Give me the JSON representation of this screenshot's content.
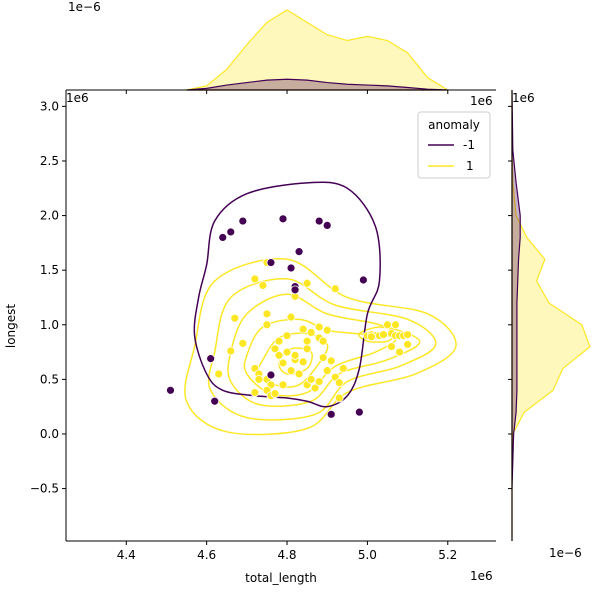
{
  "chart_data": {
    "type": "scatter",
    "subtype": "jointplot-kde",
    "xlabel": "total_length",
    "ylabel": "longest",
    "xlim": [
      4.25,
      5.32
    ],
    "ylim": [
      -0.98,
      3.15
    ],
    "x_ticks": [
      4.4,
      4.6,
      4.8,
      5.0,
      5.2
    ],
    "x_tick_labels": [
      "4.4",
      "4.6",
      "4.8",
      "5.0",
      "5.2"
    ],
    "y_ticks": [
      -0.5,
      0.0,
      0.5,
      1.0,
      1.5,
      2.0,
      2.5,
      3.0
    ],
    "y_tick_labels": [
      "−0.5",
      "0.0",
      "0.5",
      "1.0",
      "1.5",
      "2.0",
      "2.5",
      "3.0"
    ],
    "x_offset_text": "1e6",
    "y_offset_text": "1e6",
    "top_marginal_offset": "1e−6",
    "top_marginal_offset_right": "1e6",
    "right_marginal_offset": "1e6",
    "right_marginal_offset_bottom": "1e−6",
    "legend": {
      "title": "anomaly",
      "placement": "top-right",
      "entries": [
        {
          "label": "-1",
          "color": "#440154"
        },
        {
          "label": "1",
          "color": "#fde725"
        }
      ]
    },
    "series": [
      {
        "name": "-1",
        "color": "#440154",
        "points": [
          [
            4.51,
            0.4
          ],
          [
            4.62,
            0.3
          ],
          [
            4.61,
            0.69
          ],
          [
            4.64,
            1.8
          ],
          [
            4.66,
            1.85
          ],
          [
            4.69,
            1.95
          ],
          [
            4.79,
            1.97
          ],
          [
            4.76,
            1.57
          ],
          [
            4.76,
            0.54
          ],
          [
            4.81,
            1.52
          ],
          [
            4.82,
            1.35
          ],
          [
            4.82,
            1.32
          ],
          [
            4.83,
            1.67
          ],
          [
            4.88,
            1.95
          ],
          [
            4.9,
            1.91
          ],
          [
            4.91,
            0.18
          ],
          [
            4.98,
            0.2
          ],
          [
            4.99,
            1.41
          ]
        ]
      },
      {
        "name": "1",
        "color": "#fde725",
        "points": [
          [
            4.75,
            1.57
          ],
          [
            4.72,
            1.42
          ],
          [
            4.74,
            1.36
          ],
          [
            4.82,
            1.26
          ],
          [
            4.85,
            1.38
          ],
          [
            4.92,
            1.33
          ],
          [
            4.67,
            1.06
          ],
          [
            4.75,
            1.1
          ],
          [
            4.75,
            1.0
          ],
          [
            4.81,
            1.07
          ],
          [
            4.8,
            0.9
          ],
          [
            4.84,
            0.96
          ],
          [
            4.86,
            0.93
          ],
          [
            4.88,
            0.98
          ],
          [
            4.9,
            0.95
          ],
          [
            4.85,
            0.85
          ],
          [
            4.88,
            0.88
          ],
          [
            4.89,
            0.85
          ],
          [
            4.66,
            0.76
          ],
          [
            4.69,
            0.83
          ],
          [
            4.72,
            0.6
          ],
          [
            4.73,
            0.55
          ],
          [
            4.75,
            0.5
          ],
          [
            4.76,
            0.45
          ],
          [
            4.77,
            0.78
          ],
          [
            4.78,
            0.72
          ],
          [
            4.79,
            0.65
          ],
          [
            4.8,
            0.75
          ],
          [
            4.81,
            0.58
          ],
          [
            4.82,
            0.68
          ],
          [
            4.83,
            0.55
          ],
          [
            4.84,
            0.66
          ],
          [
            4.85,
            0.45
          ],
          [
            4.86,
            0.5
          ],
          [
            4.87,
            0.42
          ],
          [
            4.88,
            0.48
          ],
          [
            4.89,
            0.7
          ],
          [
            4.9,
            0.58
          ],
          [
            4.91,
            0.67
          ],
          [
            4.92,
            0.52
          ],
          [
            4.93,
            0.47
          ],
          [
            4.94,
            0.6
          ],
          [
            4.93,
            0.33
          ],
          [
            4.72,
            0.38
          ],
          [
            4.73,
            0.5
          ],
          [
            4.75,
            0.4
          ],
          [
            4.76,
            0.35
          ],
          [
            4.77,
            0.37
          ],
          [
            4.79,
            0.45
          ],
          [
            4.78,
            0.85
          ],
          [
            4.82,
            0.72
          ],
          [
            4.85,
            0.78
          ],
          [
            4.63,
            0.55
          ],
          [
            5.0,
            0.9
          ],
          [
            5.01,
            0.91
          ],
          [
            5.02,
            0.9
          ],
          [
            5.03,
            0.9
          ],
          [
            5.04,
            0.91
          ],
          [
            5.06,
            0.92
          ],
          [
            5.07,
            0.9
          ],
          [
            5.08,
            0.9
          ],
          [
            5.09,
            0.9
          ],
          [
            5.1,
            0.91
          ],
          [
            5.06,
            0.8
          ],
          [
            5.08,
            0.75
          ],
          [
            5.1,
            0.82
          ],
          [
            5.05,
            1.0
          ],
          [
            5.07,
            1.0
          ],
          [
            5.01,
            0.89
          ]
        ]
      }
    ],
    "kde_contours": [
      {
        "series": "-1",
        "level": 1,
        "path": [
          [
            4.6,
            1.55
          ],
          [
            4.62,
            1.95
          ],
          [
            4.7,
            2.2
          ],
          [
            4.85,
            2.3
          ],
          [
            4.95,
            2.25
          ],
          [
            5.02,
            1.9
          ],
          [
            5.03,
            1.4
          ],
          [
            5.0,
            1.1
          ],
          [
            4.98,
            0.6
          ],
          [
            4.95,
            0.35
          ],
          [
            4.9,
            0.25
          ],
          [
            4.85,
            0.3
          ],
          [
            4.8,
            0.33
          ],
          [
            4.72,
            0.35
          ],
          [
            4.64,
            0.4
          ],
          [
            4.6,
            0.55
          ],
          [
            4.57,
            0.9
          ],
          [
            4.58,
            1.25
          ]
        ]
      }
    ],
    "kde_contours_series1": [
      [
        [
          4.57,
          0.8
        ],
        [
          4.62,
          1.4
        ],
        [
          4.8,
          1.6
        ],
        [
          4.95,
          1.25
        ],
        [
          5.15,
          1.1
        ],
        [
          5.22,
          0.8
        ],
        [
          5.12,
          0.55
        ],
        [
          4.95,
          0.38
        ],
        [
          4.85,
          0.05
        ],
        [
          4.65,
          0.02
        ],
        [
          4.55,
          0.3
        ]
      ],
      [
        [
          4.62,
          0.75
        ],
        [
          4.66,
          1.25
        ],
        [
          4.8,
          1.42
        ],
        [
          4.92,
          1.18
        ],
        [
          5.1,
          1.05
        ],
        [
          5.17,
          0.82
        ],
        [
          5.08,
          0.62
        ],
        [
          4.95,
          0.48
        ],
        [
          4.87,
          0.18
        ],
        [
          4.7,
          0.15
        ],
        [
          4.61,
          0.4
        ]
      ],
      [
        [
          4.66,
          0.75
        ],
        [
          4.7,
          1.1
        ],
        [
          4.8,
          1.28
        ],
        [
          4.9,
          1.1
        ],
        [
          5.03,
          1.0
        ],
        [
          5.13,
          0.85
        ],
        [
          5.05,
          0.68
        ],
        [
          4.93,
          0.55
        ],
        [
          4.86,
          0.3
        ],
        [
          4.73,
          0.27
        ],
        [
          4.66,
          0.48
        ]
      ],
      [
        [
          4.7,
          0.72
        ],
        [
          4.74,
          0.98
        ],
        [
          4.83,
          1.05
        ],
        [
          4.9,
          0.95
        ],
        [
          4.97,
          0.92
        ],
        [
          5.07,
          0.88
        ],
        [
          5.02,
          0.75
        ],
        [
          4.92,
          0.62
        ],
        [
          4.85,
          0.38
        ],
        [
          4.76,
          0.37
        ],
        [
          4.7,
          0.55
        ]
      ],
      [
        [
          4.74,
          0.68
        ],
        [
          4.78,
          0.88
        ],
        [
          4.85,
          0.92
        ],
        [
          4.9,
          0.82
        ],
        [
          4.88,
          0.65
        ],
        [
          4.83,
          0.45
        ],
        [
          4.77,
          0.45
        ],
        [
          4.73,
          0.56
        ]
      ],
      [
        [
          4.98,
          0.92
        ],
        [
          5.03,
          0.98
        ],
        [
          5.07,
          0.93
        ],
        [
          5.05,
          0.85
        ],
        [
          5.0,
          0.85
        ]
      ],
      [
        [
          4.78,
          0.65
        ],
        [
          4.81,
          0.78
        ],
        [
          4.86,
          0.75
        ],
        [
          4.85,
          0.6
        ],
        [
          4.8,
          0.55
        ]
      ]
    ],
    "top_marginal": {
      "x": [
        4.55,
        4.6,
        4.65,
        4.7,
        4.75,
        4.8,
        4.85,
        4.9,
        4.95,
        5.0,
        5.05,
        5.1,
        5.15,
        5.2
      ],
      "density_1": [
        0.0,
        0.05,
        0.25,
        0.55,
        0.82,
        0.97,
        0.82,
        0.67,
        0.6,
        0.65,
        0.6,
        0.45,
        0.15,
        0.0
      ],
      "density_-1": [
        0.0,
        0.02,
        0.06,
        0.09,
        0.12,
        0.13,
        0.12,
        0.09,
        0.07,
        0.06,
        0.05,
        0.03,
        0.01,
        0.0
      ]
    },
    "right_marginal": {
      "y": [
        -0.98,
        -0.5,
        0.0,
        0.2,
        0.4,
        0.6,
        0.8,
        1.0,
        1.2,
        1.4,
        1.6,
        1.8,
        2.0,
        2.3,
        2.6,
        3.15
      ],
      "density_1": [
        0.0,
        0.0,
        0.01,
        0.15,
        0.5,
        0.62,
        0.95,
        0.85,
        0.45,
        0.3,
        0.4,
        0.18,
        0.05,
        0.01,
        0.0,
        0.0
      ],
      "density_-1": [
        0.0,
        0.0,
        0.02,
        0.05,
        0.06,
        0.06,
        0.06,
        0.06,
        0.06,
        0.07,
        0.08,
        0.1,
        0.1,
        0.05,
        0.01,
        0.0
      ]
    }
  }
}
